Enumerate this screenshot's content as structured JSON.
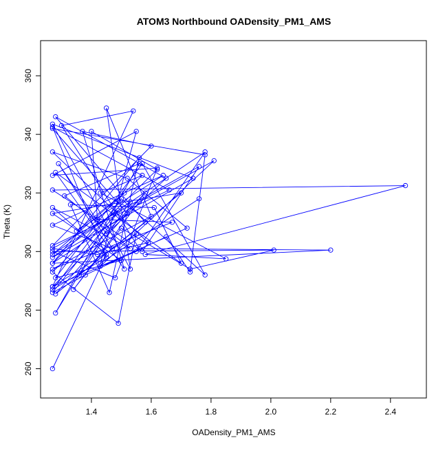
{
  "chart_data": {
    "type": "scatter",
    "title": "ATOM3 Northbound OADensity_PM1_AMS",
    "xlabel": "OADensity_PM1_AMS",
    "ylabel": "Theta (K)",
    "xlim": [
      1.23,
      2.52
    ],
    "ylim": [
      250,
      372
    ],
    "x_ticks": [
      1.4,
      1.6,
      1.8,
      2.0,
      2.2,
      2.4
    ],
    "x_tick_labels": [
      "1.4",
      "1.6",
      "1.8",
      "2.0",
      "2.2",
      "2.4"
    ],
    "y_ticks": [
      260,
      280,
      300,
      320,
      340,
      360
    ],
    "y_tick_labels": [
      "260",
      "280",
      "300",
      "320",
      "340",
      "360"
    ],
    "grid": false,
    "legend": "none",
    "marker": "open-circle",
    "connected": true,
    "series_color": "#0000ff",
    "series": [
      {
        "points": [
          [
            1.27,
            260.0
          ],
          [
            1.45,
            299.0
          ],
          [
            1.27,
            315.0
          ],
          [
            1.53,
            301.0
          ],
          [
            1.31,
            319.0
          ],
          [
            1.56,
            330.0
          ],
          [
            1.28,
            279.0
          ],
          [
            1.49,
            314.0
          ],
          [
            1.27,
            286.0
          ],
          [
            1.38,
            292.0
          ],
          [
            1.65,
            305.0
          ],
          [
            1.73,
            293.0
          ],
          [
            1.78,
            333.0
          ],
          [
            1.27,
            342.0
          ],
          [
            1.52,
            313.0
          ],
          [
            1.27,
            296.0
          ],
          [
            1.57,
            326.0
          ],
          [
            1.43,
            320.0
          ],
          [
            1.85,
            297.5
          ],
          [
            1.58,
            299.0
          ],
          [
            2.45,
            322.5
          ],
          [
            1.27,
            321.0
          ],
          [
            1.42,
            311.0
          ],
          [
            1.4,
            341.0
          ],
          [
            1.62,
            328.0
          ],
          [
            1.27,
            293.0
          ],
          [
            1.49,
            275.5
          ],
          [
            1.55,
            306.0
          ],
          [
            1.27,
            288.0
          ],
          [
            1.54,
            348.0
          ],
          [
            1.3,
            343.0
          ],
          [
            1.56,
            301.0
          ],
          [
            2.2,
            300.5
          ],
          [
            1.27,
            296.0
          ],
          [
            1.56,
            332.0
          ],
          [
            1.46,
            286.0
          ],
          [
            1.33,
            316.0
          ],
          [
            1.61,
            315.0
          ],
          [
            1.7,
            296.0
          ],
          [
            1.28,
            327.0
          ],
          [
            1.51,
            294.0
          ],
          [
            1.37,
            341.0
          ],
          [
            1.6,
            336.0
          ],
          [
            1.27,
            302.0
          ],
          [
            1.66,
            321.0
          ],
          [
            1.27,
            342.5
          ],
          [
            1.45,
            298.0
          ],
          [
            1.27,
            287.0
          ],
          [
            1.5,
            318.0
          ],
          [
            1.78,
            292.0
          ],
          [
            1.57,
            330.0
          ],
          [
            1.28,
            291.0
          ],
          [
            1.5,
            297.0
          ],
          [
            1.27,
            313.0
          ],
          [
            1.7,
            320.0
          ],
          [
            1.28,
            285.5
          ],
          [
            1.58,
            320.0
          ],
          [
            1.27,
            288.0
          ],
          [
            1.55,
            300.0
          ],
          [
            1.78,
            334.0
          ],
          [
            1.27,
            299.0
          ],
          [
            1.51,
            320.0
          ],
          [
            1.35,
            307.0
          ],
          [
            1.64,
            326.0
          ],
          [
            1.27,
            309.0
          ],
          [
            1.47,
            301.0
          ],
          [
            1.29,
            330.0
          ],
          [
            1.45,
            306.0
          ],
          [
            1.65,
            325.0
          ],
          [
            1.28,
            346.0
          ],
          [
            1.58,
            310.0
          ],
          [
            1.36,
            292.0
          ],
          [
            1.53,
            317.0
          ],
          [
            1.27,
            298.0
          ],
          [
            1.74,
            325.0
          ],
          [
            1.27,
            343.5
          ],
          [
            1.53,
            294.0
          ],
          [
            1.45,
            349.0
          ],
          [
            1.6,
            312.0
          ],
          [
            1.27,
            294.0
          ],
          [
            1.67,
            310.0
          ],
          [
            1.42,
            311.0
          ],
          [
            1.57,
            300.0
          ],
          [
            1.76,
            329.0
          ],
          [
            1.27,
            301.0
          ],
          [
            1.42,
            299.0
          ],
          [
            1.59,
            303.0
          ],
          [
            1.27,
            334.0
          ],
          [
            1.52,
            325.0
          ],
          [
            1.72,
            308.0
          ],
          [
            1.43,
            295.0
          ],
          [
            1.81,
            331.0
          ],
          [
            1.56,
            317.0
          ],
          [
            1.34,
            287.0
          ],
          [
            1.5,
            308.0
          ],
          [
            1.73,
            294.0
          ],
          [
            2.01,
            300.5
          ],
          [
            1.27,
            300.0
          ],
          [
            1.48,
            291.0
          ],
          [
            1.62,
            328.5
          ],
          [
            1.27,
            326.0
          ],
          [
            1.55,
            341.0
          ],
          [
            1.43,
            296.0
          ],
          [
            1.76,
            318.0
          ]
        ]
      }
    ]
  }
}
